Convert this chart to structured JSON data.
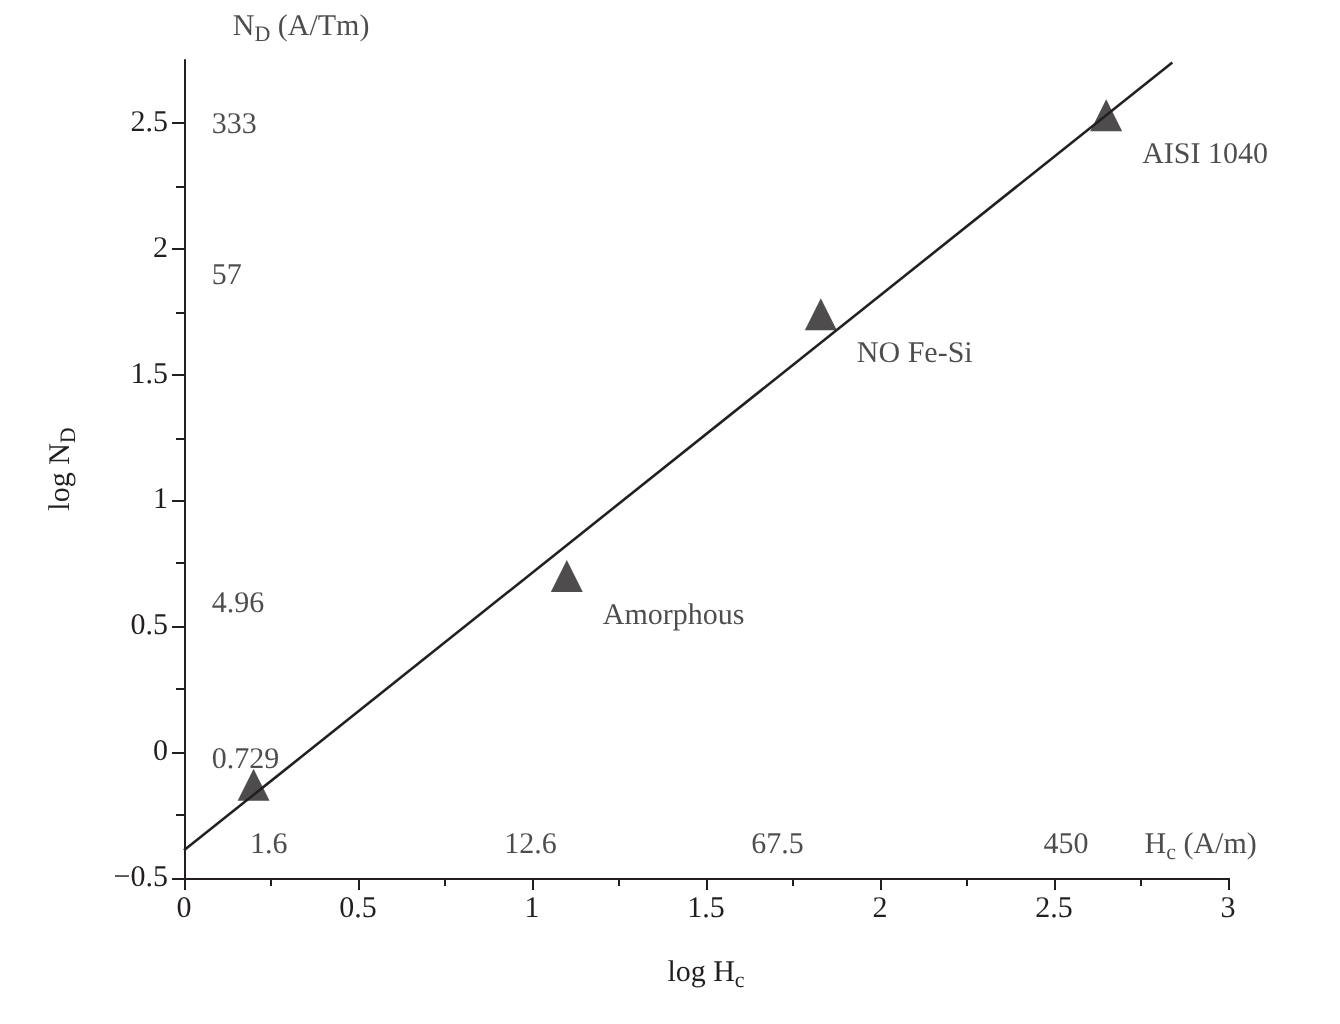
{
  "chart_data": {
    "type": "scatter",
    "xlabel": "log H$_{c}$",
    "ylabel": "log N$_{D}$",
    "xlim": [
      0,
      3
    ],
    "xticks": [
      0,
      0.5,
      1,
      1.5,
      2,
      2.5,
      3
    ],
    "ylim": [
      -0.5,
      2.75
    ],
    "yticks": [
      -0.5,
      0,
      0.5,
      1,
      1.5,
      2,
      2.5
    ],
    "marker": "triangle",
    "annotations": [
      "N$_{D}$ (A/Tm)",
      "333",
      "57",
      "4.96",
      "0.729",
      "1.6",
      "12.6",
      "67.5",
      "450",
      "H$_{c}$ (A/m)"
    ],
    "series": [
      {
        "color": "#231f20",
        "x": [
          0.2,
          1.1,
          1.83,
          2.65
        ],
        "values": [
          -0.13,
          0.7,
          1.74,
          2.53
        ],
        "value_labels": [
          null,
          "Amorphous",
          "NO Fe-Si",
          "AISI 1040"
        ]
      },
      {
        "type": "line",
        "color": "#231f20",
        "marker": "none",
        "line_style": "solid",
        "x": [
          0,
          2.84
        ],
        "values": [
          -0.39,
          2.74
        ]
      }
    ]
  }
}
